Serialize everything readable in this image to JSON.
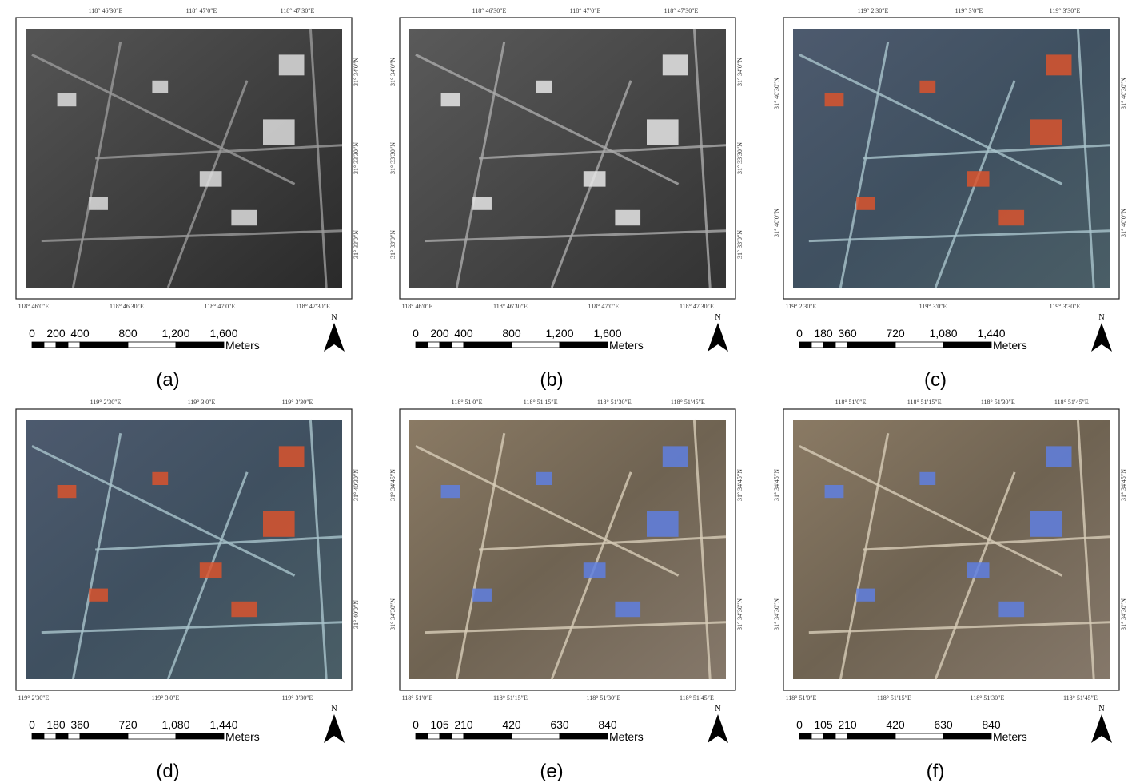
{
  "panels": [
    {
      "caption": "(a)",
      "style": "gray-dark",
      "top_labels": [
        "118° 46′30″E",
        "118° 47′0″E",
        "118° 47′30″E"
      ],
      "bottom_labels": [
        "118° 46′0″E",
        "118° 46′30″E",
        "118° 47′0″E",
        "118° 47′30″E"
      ],
      "left_labels": [],
      "right_labels": [
        "31° 34′0″N",
        "31° 33′30″N",
        "31° 33′0″N"
      ],
      "scale_labels": [
        "0",
        "200",
        "400",
        "800",
        "1,200",
        "1,600"
      ],
      "unit": "Meters",
      "north": "N"
    },
    {
      "caption": "(b)",
      "style": "gray",
      "top_labels": [
        "118° 46′30″E",
        "118° 47′0″E",
        "118° 47′30″E"
      ],
      "bottom_labels": [
        "118° 46′0″E",
        "118° 46′30″E",
        "118° 47′0″E",
        "118° 47′30″E"
      ],
      "left_labels": [
        "31° 34′0″N",
        "31° 33′30″N",
        "31° 33′0″N"
      ],
      "right_labels": [
        "31° 34′0″N",
        "31° 33′30″N",
        "31° 33′0″N"
      ],
      "scale_labels": [
        "0",
        "200",
        "400",
        "800",
        "1,200",
        "1,600"
      ],
      "unit": "Meters",
      "north": "N"
    },
    {
      "caption": "(c)",
      "style": "blue",
      "top_labels": [
        "119° 2′30″E",
        "119° 3′0″E",
        "119° 3′30″E"
      ],
      "bottom_labels": [
        "119° 2′30″E",
        "119° 3′0″E",
        "119° 3′30″E"
      ],
      "left_labels": [
        "31° 40′30″N",
        "31° 40′0″N"
      ],
      "right_labels": [
        "31° 40′30″N",
        "31° 40′0″N"
      ],
      "scale_labels": [
        "0",
        "180",
        "360",
        "720",
        "1,080",
        "1,440"
      ],
      "unit": "Meters",
      "north": "N"
    },
    {
      "caption": "(d)",
      "style": "blue",
      "top_labels": [
        "119° 2′30″E",
        "119° 3′0″E",
        "119° 3′30″E"
      ],
      "bottom_labels": [
        "119° 2′30″E",
        "119° 3′0″E",
        "119° 3′30″E"
      ],
      "left_labels": [],
      "right_labels": [
        "31° 40′30″N",
        "31° 40′0″N"
      ],
      "scale_labels": [
        "0",
        "180",
        "360",
        "720",
        "1,080",
        "1,440"
      ],
      "unit": "Meters",
      "north": "N"
    },
    {
      "caption": "(e)",
      "style": "tan",
      "top_labels": [
        "118° 51′0″E",
        "118° 51′15″E",
        "118° 51′30″E",
        "118° 51′45″E"
      ],
      "bottom_labels": [
        "118° 51′0″E",
        "118° 51′15″E",
        "118° 51′30″E",
        "118° 51′45″E"
      ],
      "left_labels": [
        "31° 34′45″N",
        "31° 34′30″N"
      ],
      "right_labels": [
        "31° 34′45″N",
        "31° 34′30″N"
      ],
      "scale_labels": [
        "0",
        "105",
        "210",
        "420",
        "630",
        "840"
      ],
      "unit": "Meters",
      "north": "N"
    },
    {
      "caption": "(f)",
      "style": "tan",
      "top_labels": [
        "118° 51′0″E",
        "118° 51′15″E",
        "118° 51′30″E",
        "118° 51′45″E"
      ],
      "bottom_labels": [
        "118° 51′0″E",
        "118° 51′15″E",
        "118° 51′30″E",
        "118° 51′45″E"
      ],
      "left_labels": [
        "31° 34′45″N",
        "31° 34′30″N"
      ],
      "right_labels": [
        "31° 34′45″N",
        "31° 34′30″N"
      ],
      "scale_labels": [
        "0",
        "105",
        "210",
        "420",
        "630",
        "840"
      ],
      "unit": "Meters",
      "north": "N"
    }
  ]
}
